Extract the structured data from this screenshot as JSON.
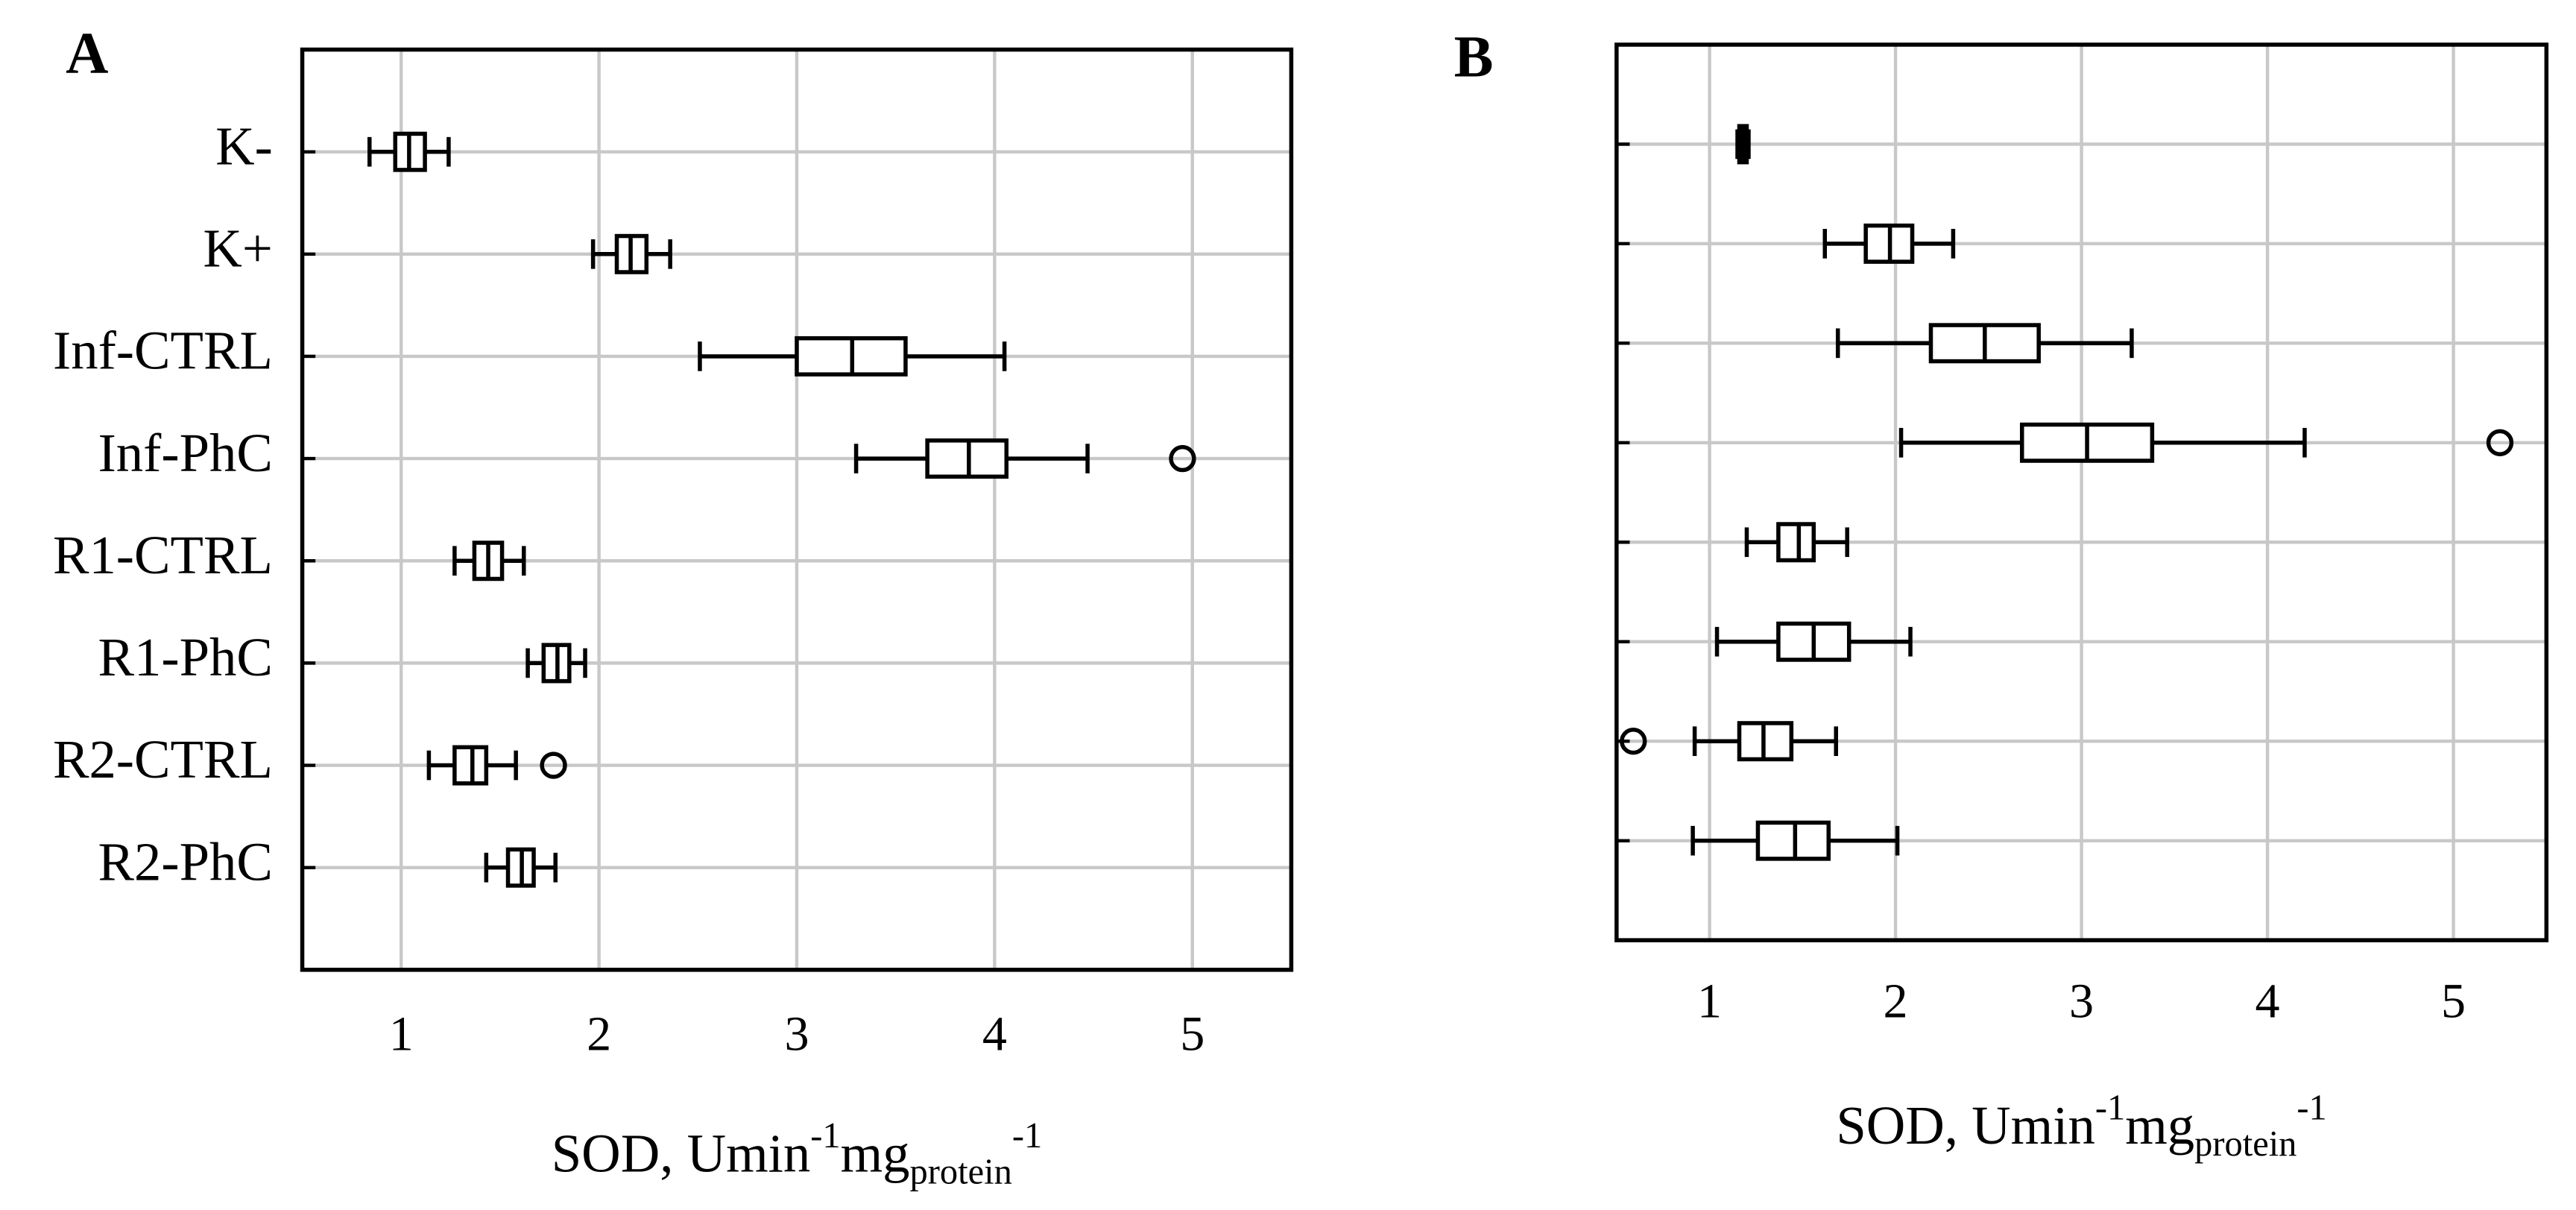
{
  "chart_data": [
    {
      "type": "box",
      "title": "A",
      "xlabel": [
        "SOD, Umin",
        "-1",
        "mg",
        "protein",
        "-1"
      ],
      "categories": [
        "K-",
        "K+",
        "Inf-CTRL",
        "Inf-PhC",
        "R1-CTRL",
        "R1-PhC",
        "R2-CTRL",
        "R2-PhC"
      ],
      "boxes": [
        {
          "min": 0.84,
          "q1": 0.97,
          "median": 1.04,
          "q3": 1.12,
          "max": 1.24,
          "outliers": []
        },
        {
          "min": 1.97,
          "q1": 2.09,
          "median": 2.16,
          "q3": 2.24,
          "max": 2.36,
          "outliers": []
        },
        {
          "min": 2.51,
          "q1": 3.0,
          "median": 3.28,
          "q3": 3.55,
          "max": 4.05,
          "outliers": []
        },
        {
          "min": 3.3,
          "q1": 3.66,
          "median": 3.87,
          "q3": 4.06,
          "max": 4.47,
          "outliers": [
            4.95
          ]
        },
        {
          "min": 1.27,
          "q1": 1.37,
          "median": 1.44,
          "q3": 1.51,
          "max": 1.62,
          "outliers": []
        },
        {
          "min": 1.64,
          "q1": 1.72,
          "median": 1.79,
          "q3": 1.85,
          "max": 1.93,
          "outliers": []
        },
        {
          "min": 1.14,
          "q1": 1.27,
          "median": 1.36,
          "q3": 1.43,
          "max": 1.58,
          "outliers": [
            1.77
          ]
        },
        {
          "min": 1.43,
          "q1": 1.54,
          "median": 1.61,
          "q3": 1.67,
          "max": 1.78,
          "outliers": []
        }
      ],
      "xlim": [
        0.5,
        5.5
      ],
      "xticks": [
        1,
        2,
        3,
        4,
        5
      ],
      "grid": true
    },
    {
      "type": "box",
      "title": "B",
      "xlabel": [
        "SOD, Umin",
        "-1",
        "mg",
        "protein",
        "-1"
      ],
      "categories": [
        null,
        null,
        null,
        null,
        null,
        null,
        null,
        null
      ],
      "boxes": [
        {
          "min": 1.15,
          "q1": 1.16,
          "median": 1.18,
          "q3": 1.2,
          "max": 1.21,
          "outliers": []
        },
        {
          "min": 1.62,
          "q1": 1.84,
          "median": 1.97,
          "q3": 2.09,
          "max": 2.31,
          "outliers": []
        },
        {
          "min": 1.69,
          "q1": 2.19,
          "median": 2.48,
          "q3": 2.77,
          "max": 3.27,
          "outliers": []
        },
        {
          "min": 2.03,
          "q1": 2.68,
          "median": 3.03,
          "q3": 3.38,
          "max": 4.2,
          "outliers": [
            5.25
          ]
        },
        {
          "min": 1.2,
          "q1": 1.37,
          "median": 1.48,
          "q3": 1.56,
          "max": 1.74,
          "outliers": []
        },
        {
          "min": 1.04,
          "q1": 1.37,
          "median": 1.56,
          "q3": 1.75,
          "max": 2.08,
          "outliers": []
        },
        {
          "min": 0.92,
          "q1": 1.16,
          "median": 1.29,
          "q3": 1.44,
          "max": 1.68,
          "outliers": [
            0.59
          ]
        },
        {
          "min": 0.91,
          "q1": 1.26,
          "median": 1.46,
          "q3": 1.64,
          "max": 2.01,
          "outliers": []
        }
      ],
      "xlim": [
        0.5,
        5.5
      ],
      "xticks": [
        1,
        2,
        3,
        4,
        5
      ],
      "grid": true
    }
  ]
}
